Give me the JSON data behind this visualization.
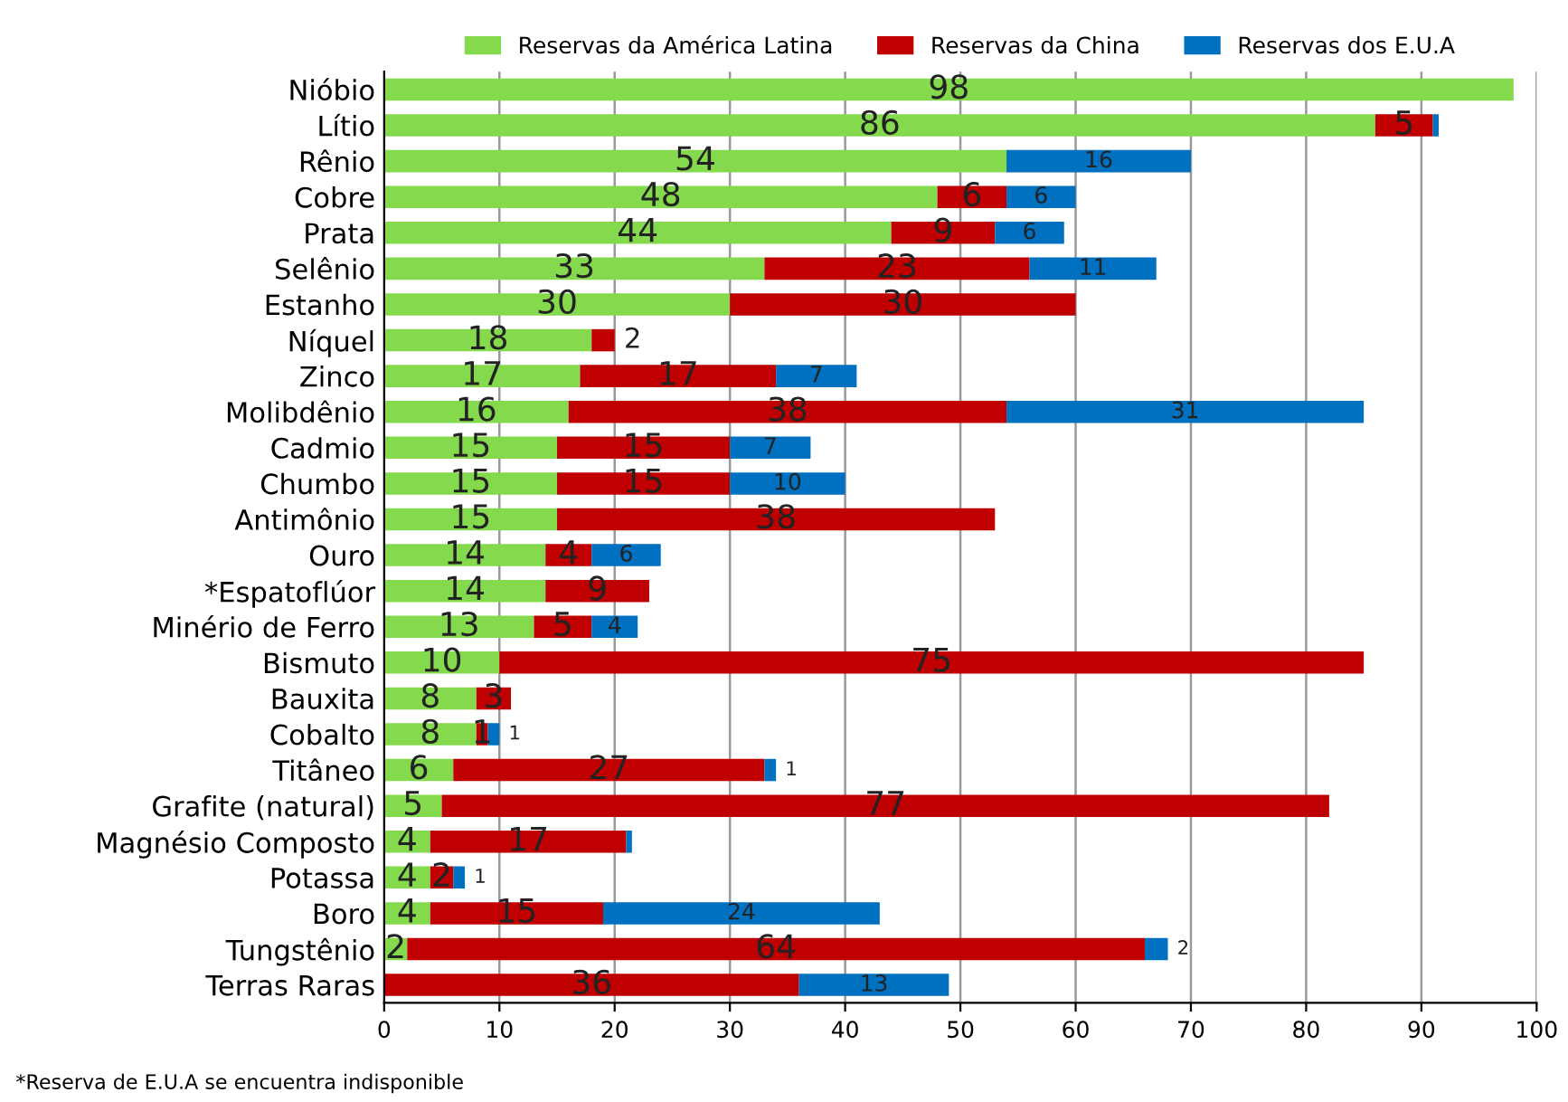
{
  "chart_data": {
    "type": "bar",
    "orientation": "horizontal",
    "stacked": true,
    "categories": [
      "Nióbio",
      "Lítio",
      "Rênio",
      "Cobre",
      "Prata",
      "Selênio",
      "Estanho",
      "Níquel",
      "Zinco",
      "Molibdênio",
      "Cadmio",
      "Chumbo",
      "Antimônio",
      "Ouro",
      "*Espatoflúor",
      "Minério de Ferro",
      "Bismuto",
      "Bauxita",
      "Cobalto",
      "Titâneo",
      "Grafite (natural)",
      "Magnésio Composto",
      "Potassa",
      "Boro",
      "Tungstênio",
      "Terras Raras"
    ],
    "series": [
      {
        "name": "Reservas da América Latina",
        "color": "#84d94c",
        "values": [
          98,
          86,
          54,
          48,
          44,
          33,
          30,
          18,
          17,
          16,
          15,
          15,
          15,
          14,
          14,
          13,
          10,
          8,
          8,
          6,
          5,
          4,
          4,
          4,
          2,
          null
        ],
        "value_labels": [
          "98",
          "86",
          "54",
          "48",
          "44",
          "33",
          "30",
          "18",
          "17",
          "16",
          "15",
          "15",
          "15",
          "14",
          "14",
          "13",
          "10",
          "8",
          "8",
          "6",
          "5",
          "4",
          "4",
          "4",
          "2",
          null
        ]
      },
      {
        "name": "Reservas da China",
        "color": "#c00000",
        "values": [
          null,
          5,
          null,
          6,
          9,
          23,
          30,
          2,
          17,
          38,
          15,
          15,
          38,
          4,
          9,
          5,
          75,
          3,
          1,
          27,
          77,
          17,
          2,
          15,
          64,
          36
        ],
        "value_labels": [
          null,
          "5",
          null,
          "6",
          "9",
          "23",
          "30",
          "2",
          "17",
          "38",
          "15",
          "15",
          "38",
          "4",
          "9",
          "5",
          "75",
          "3",
          "1",
          "27",
          "77",
          "17",
          "2",
          "15",
          "64",
          "36"
        ]
      },
      {
        "name": "Reservas dos E.U.A",
        "color": "#0070c0",
        "values": [
          null,
          0.5,
          16,
          6,
          6,
          11,
          null,
          null,
          7,
          31,
          7,
          10,
          null,
          6,
          null,
          4,
          null,
          null,
          1,
          1,
          null,
          0.5,
          1,
          24,
          2,
          13
        ],
        "value_labels": [
          null,
          null,
          "16",
          "6",
          "6",
          "11",
          null,
          null,
          "7",
          "31",
          "7",
          "10",
          null,
          "6",
          null,
          "4",
          null,
          null,
          "1",
          "1",
          null,
          null,
          "1",
          "24",
          "2",
          "13"
        ]
      }
    ],
    "xlim": [
      0,
      100
    ],
    "xticks": [
      0,
      10,
      20,
      30,
      40,
      50,
      60,
      70,
      80,
      90,
      100
    ],
    "grid": "x",
    "legend": "top",
    "annotations": [
      "*Reserva de E.U.A se encuentra indisponible"
    ]
  }
}
